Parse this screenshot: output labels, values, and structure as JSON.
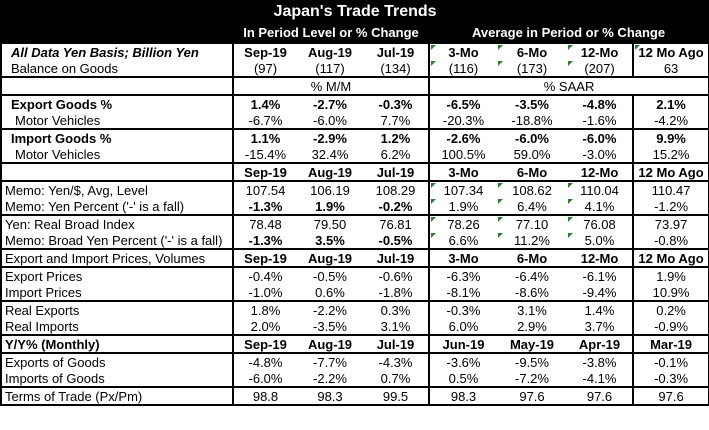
{
  "title": "Japan's Trade Trends",
  "header": {
    "left_group": "In Period Level or % Change",
    "right_group": "Average in Period or % Change"
  },
  "section_goods": {
    "label": "All Data Yen Basis; Billion Yen",
    "cols": [
      "Sep-19",
      "Aug-19",
      "Jul-19",
      "3-Mo",
      "6-Mo",
      "12-Mo",
      "12 Mo Ago"
    ],
    "rows": [
      {
        "label": "Balance on Goods",
        "values": [
          "(97)",
          "(117)",
          "(134)",
          "(116)",
          "(173)",
          "(207)",
          "63"
        ]
      }
    ]
  },
  "section_units": {
    "left": "% M/M",
    "right": "% SAAR"
  },
  "section_trade": {
    "rows": [
      {
        "label": "Export Goods %",
        "bold": true,
        "values": [
          "1.4%",
          "-2.7%",
          "-0.3%",
          "-6.5%",
          "-3.5%",
          "-4.8%",
          "2.1%"
        ]
      },
      {
        "label": "Motor Vehicles",
        "bold": false,
        "values": [
          "-6.7%",
          "-6.0%",
          "7.7%",
          "-20.3%",
          "-18.8%",
          "-1.6%",
          "-4.2%"
        ]
      },
      {
        "label": "Import Goods %",
        "bold": true,
        "values": [
          "1.1%",
          "-2.9%",
          "1.2%",
          "-2.6%",
          "-6.0%",
          "-6.0%",
          "9.9%"
        ]
      },
      {
        "label": "Motor Vehicles",
        "bold": false,
        "values": [
          "-15.4%",
          "32.4%",
          "6.2%",
          "100.5%",
          "59.0%",
          "-3.0%",
          "15.2%"
        ]
      }
    ]
  },
  "section_memo": {
    "cols": [
      "Sep-19",
      "Aug-19",
      "Jul-19",
      "3-Mo",
      "6-Mo",
      "12-Mo",
      "12 Mo Ago"
    ],
    "rows": [
      {
        "label": "Memo: Yen/$, Avg, Level",
        "values": [
          "107.54",
          "106.19",
          "108.29",
          "107.34",
          "108.62",
          "110.04",
          "110.47"
        ]
      },
      {
        "label": "Memo: Yen Percent ('-' is a fall)",
        "values": [
          "-1.3%",
          "1.9%",
          "-0.2%",
          "1.9%",
          "6.4%",
          "4.1%",
          "-1.2%"
        ]
      },
      {
        "label": "Yen: Real Broad Index",
        "values": [
          "78.48",
          "79.50",
          "76.81",
          "78.26",
          "77.10",
          "76.08",
          "73.97"
        ]
      },
      {
        "label": "Memo: Broad Yen Percent ('-' is a fall)",
        "values": [
          "-1.3%",
          "3.5%",
          "-0.5%",
          "6.6%",
          "11.2%",
          "5.0%",
          "-0.8%"
        ]
      }
    ]
  },
  "section_prices": {
    "label": "Export and Import Prices, Volumes",
    "cols": [
      "Sep-19",
      "Aug-19",
      "Jul-19",
      "3-Mo",
      "6-Mo",
      "12-Mo",
      "12 Mo Ago"
    ],
    "rows": [
      {
        "label": "Export Prices",
        "values": [
          "-0.4%",
          "-0.5%",
          "-0.6%",
          "-6.3%",
          "-6.4%",
          "-6.1%",
          "1.9%"
        ]
      },
      {
        "label": "Import Prices",
        "values": [
          "-1.0%",
          "0.6%",
          "-1.8%",
          "-8.1%",
          "-8.6%",
          "-9.4%",
          "10.9%"
        ]
      },
      {
        "label": "Real Exports",
        "values": [
          "1.8%",
          "-2.2%",
          "0.3%",
          "-0.3%",
          "3.1%",
          "1.4%",
          "0.2%"
        ]
      },
      {
        "label": "Real Imports",
        "values": [
          "2.0%",
          "-3.5%",
          "3.1%",
          "6.0%",
          "2.9%",
          "3.7%",
          "-0.9%"
        ]
      }
    ]
  },
  "section_yy": {
    "label": "Y/Y% (Monthly)",
    "cols": [
      "Sep-19",
      "Aug-19",
      "Jul-19",
      "Jun-19",
      "May-19",
      "Apr-19",
      "Mar-19"
    ],
    "rows": [
      {
        "label": "Exports of Goods",
        "values": [
          "-4.8%",
          "-7.7%",
          "-4.3%",
          "-3.6%",
          "-9.5%",
          "-3.8%",
          "-0.1%"
        ]
      },
      {
        "label": "Imports of Goods",
        "values": [
          "-6.0%",
          "-2.2%",
          "0.7%",
          "0.5%",
          "-7.2%",
          "-4.1%",
          "-0.3%"
        ]
      },
      {
        "label": "Terms of Trade (Px/Pm)",
        "values": [
          "98.8",
          "98.3",
          "99.5",
          "98.3",
          "97.6",
          "97.6",
          "97.6"
        ]
      }
    ]
  }
}
